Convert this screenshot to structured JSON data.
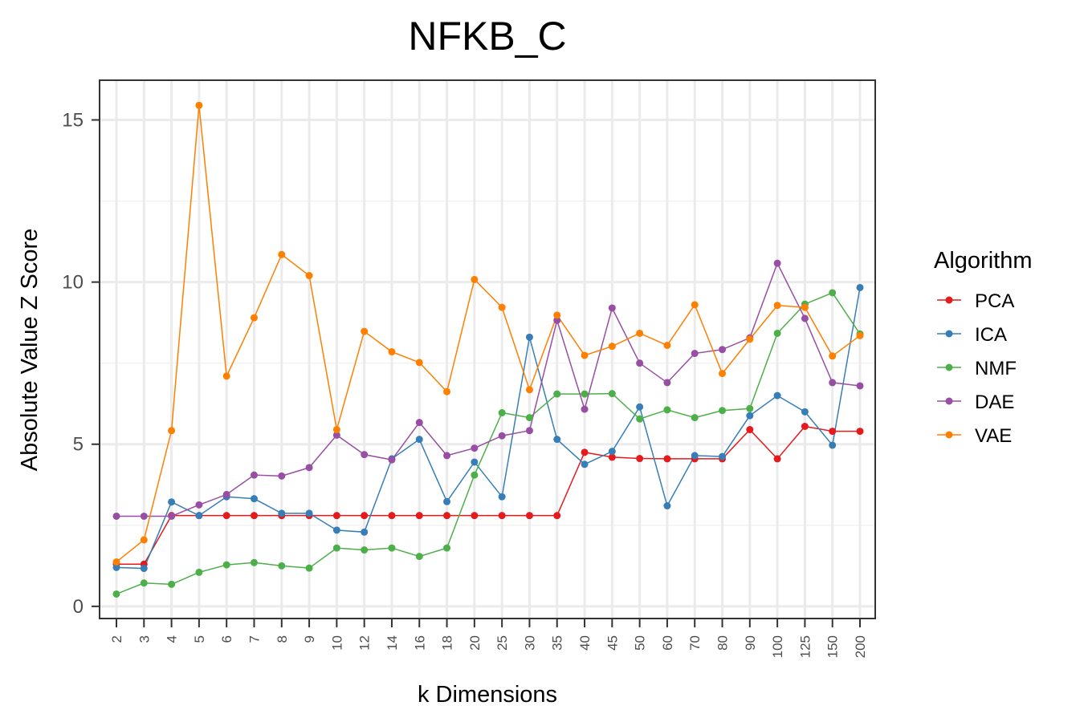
{
  "chart_data": {
    "type": "line",
    "title": "NFKB_C",
    "xlabel": "k Dimensions",
    "ylabel": "Absolute Value Z Score",
    "categories": [
      "2",
      "3",
      "4",
      "5",
      "6",
      "7",
      "8",
      "9",
      "10",
      "12",
      "14",
      "16",
      "18",
      "20",
      "25",
      "30",
      "35",
      "40",
      "45",
      "50",
      "60",
      "70",
      "80",
      "90",
      "100",
      "125",
      "150",
      "200"
    ],
    "ylim": [
      -0.35,
      16.2
    ],
    "yticks": [
      0,
      5,
      10,
      15
    ],
    "grid": true,
    "legend": {
      "title": "Algorithm",
      "position": "right"
    },
    "series": [
      {
        "name": "PCA",
        "color": "#E41A1C",
        "values": [
          1.3,
          1.3,
          2.8,
          2.8,
          2.8,
          2.8,
          2.8,
          2.8,
          2.8,
          2.8,
          2.8,
          2.8,
          2.8,
          2.8,
          2.8,
          2.8,
          2.8,
          4.75,
          4.6,
          4.56,
          4.55,
          4.55,
          4.55,
          5.45,
          4.55,
          5.55,
          5.4,
          5.4
        ]
      },
      {
        "name": "ICA",
        "color": "#377EB8",
        "values": [
          1.2,
          1.17,
          3.22,
          2.8,
          3.38,
          3.32,
          2.87,
          2.87,
          2.35,
          2.29,
          4.55,
          5.15,
          3.23,
          4.45,
          3.38,
          8.3,
          5.15,
          4.38,
          4.78,
          6.15,
          3.1,
          4.65,
          4.62,
          5.88,
          6.5,
          6.0,
          4.97,
          9.83
        ]
      },
      {
        "name": "NMF",
        "color": "#4DAF4A",
        "values": [
          0.38,
          0.72,
          0.68,
          1.05,
          1.28,
          1.35,
          1.25,
          1.18,
          1.8,
          1.74,
          1.8,
          1.54,
          1.8,
          4.05,
          5.97,
          5.82,
          6.55,
          6.55,
          6.56,
          5.78,
          6.06,
          5.82,
          6.04,
          6.1,
          8.42,
          9.32,
          9.67,
          8.4
        ]
      },
      {
        "name": "DAE",
        "color": "#984EA3",
        "values": [
          2.78,
          2.78,
          2.78,
          3.13,
          3.45,
          4.05,
          4.02,
          4.28,
          5.28,
          4.68,
          4.52,
          5.67,
          4.65,
          4.88,
          5.26,
          5.42,
          8.82,
          6.08,
          9.2,
          7.5,
          6.9,
          7.8,
          7.92,
          8.28,
          10.58,
          8.88,
          6.9,
          6.8
        ]
      },
      {
        "name": "VAE",
        "color": "#FF7F00",
        "values": [
          1.37,
          2.05,
          5.42,
          15.45,
          7.1,
          8.9,
          10.85,
          10.2,
          5.45,
          8.48,
          7.85,
          7.52,
          6.62,
          10.08,
          9.22,
          6.68,
          8.98,
          7.74,
          8.02,
          8.42,
          8.05,
          9.3,
          7.18,
          8.24,
          9.28,
          9.22,
          7.72,
          8.35
        ]
      }
    ]
  }
}
